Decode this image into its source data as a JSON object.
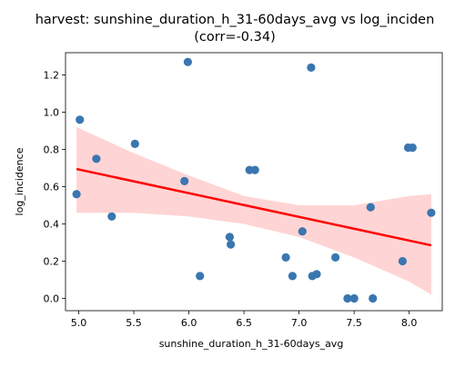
{
  "chart_data": {
    "type": "scatter",
    "title": "harvest: sunshine_duration_h_31-60days_avg vs log_inciden",
    "subtitle": "(corr=-0.34)",
    "xlabel": "sunshine_duration_h_31-60days_avg",
    "ylabel": "log_incidence",
    "xlim": [
      4.88,
      8.3
    ],
    "ylim": [
      -0.066,
      1.32
    ],
    "xticks": [
      5.0,
      5.5,
      6.0,
      6.5,
      7.0,
      7.5,
      8.0
    ],
    "xtick_labels": [
      "5.0",
      "5.5",
      "6.0",
      "6.5",
      "7.0",
      "7.5",
      "8.0"
    ],
    "yticks": [
      0.0,
      0.2,
      0.4,
      0.6,
      0.8,
      1.0,
      1.2
    ],
    "ytick_labels": [
      "0.0",
      "0.2",
      "0.4",
      "0.6",
      "0.8",
      "1.0",
      "1.2"
    ],
    "grid": false,
    "legend": false,
    "points": [
      {
        "x": 4.98,
        "y": 0.56
      },
      {
        "x": 5.01,
        "y": 0.96
      },
      {
        "x": 5.16,
        "y": 0.75
      },
      {
        "x": 5.3,
        "y": 0.44
      },
      {
        "x": 5.51,
        "y": 0.83
      },
      {
        "x": 5.96,
        "y": 0.63
      },
      {
        "x": 5.99,
        "y": 1.27
      },
      {
        "x": 6.1,
        "y": 0.12
      },
      {
        "x": 6.37,
        "y": 0.33
      },
      {
        "x": 6.38,
        "y": 0.29
      },
      {
        "x": 6.55,
        "y": 0.69
      },
      {
        "x": 6.6,
        "y": 0.69
      },
      {
        "x": 6.88,
        "y": 0.22
      },
      {
        "x": 6.94,
        "y": 0.12
      },
      {
        "x": 7.03,
        "y": 0.36
      },
      {
        "x": 7.11,
        "y": 1.24
      },
      {
        "x": 7.12,
        "y": 0.12
      },
      {
        "x": 7.16,
        "y": 0.13
      },
      {
        "x": 7.33,
        "y": 0.22
      },
      {
        "x": 7.44,
        "y": 0.0
      },
      {
        "x": 7.5,
        "y": 0.0
      },
      {
        "x": 7.65,
        "y": 0.49
      },
      {
        "x": 7.67,
        "y": 0.0
      },
      {
        "x": 7.94,
        "y": 0.2
      },
      {
        "x": 7.99,
        "y": 0.81
      },
      {
        "x": 8.03,
        "y": 0.81
      },
      {
        "x": 8.2,
        "y": 0.46
      }
    ],
    "regression": {
      "x": [
        4.98,
        8.2
      ],
      "y": [
        0.695,
        0.285
      ]
    },
    "confidence_band": {
      "x": [
        4.98,
        5.5,
        6.0,
        6.5,
        7.0,
        7.5,
        8.0,
        8.2
      ],
      "upper": [
        0.92,
        0.78,
        0.66,
        0.55,
        0.5,
        0.5,
        0.55,
        0.56
      ],
      "lower": [
        0.46,
        0.46,
        0.44,
        0.4,
        0.33,
        0.22,
        0.09,
        0.02
      ]
    },
    "colors": {
      "points": "#3a76b0",
      "regression_line": "#ff0000",
      "confidence_band": "#ffcccc"
    }
  }
}
